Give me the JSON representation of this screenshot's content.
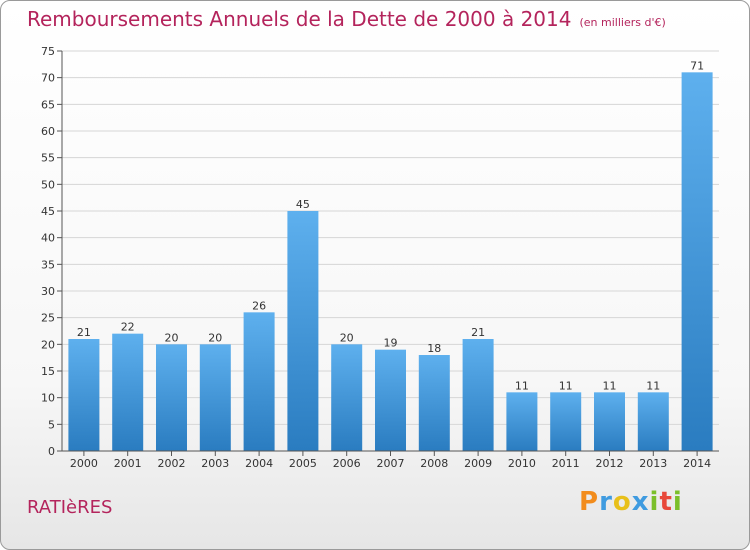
{
  "chart_data": {
    "type": "bar",
    "title": "Remboursements Annuels de la Dette de 2000 à 2014",
    "subtitle": "(en milliers d'€)",
    "categories": [
      "2000",
      "2001",
      "2002",
      "2003",
      "2004",
      "2005",
      "2006",
      "2007",
      "2008",
      "2009",
      "2010",
      "2011",
      "2012",
      "2013",
      "2014"
    ],
    "values": [
      21,
      22,
      20,
      20,
      26,
      45,
      20,
      19,
      18,
      21,
      11,
      11,
      11,
      11,
      71
    ],
    "ylim": [
      0,
      75
    ],
    "yticks": [
      0,
      5,
      10,
      15,
      20,
      25,
      30,
      35,
      40,
      45,
      50,
      55,
      60,
      65,
      70,
      75
    ],
    "grid": true,
    "bar_color": "#3d93d6",
    "grid_color": "#d6d6d6"
  },
  "footer": {
    "commune": "RATIèRES",
    "logo_letters": [
      "P",
      "r",
      "o",
      "x",
      "i",
      "t",
      "i"
    ],
    "logo_colors": [
      "#f28c1c",
      "#3f9be0",
      "#e8c01a",
      "#3f9be0",
      "#7bbf2a",
      "#e8483a",
      "#7bbf2a"
    ]
  },
  "colors": {
    "title": "#b4245c"
  }
}
